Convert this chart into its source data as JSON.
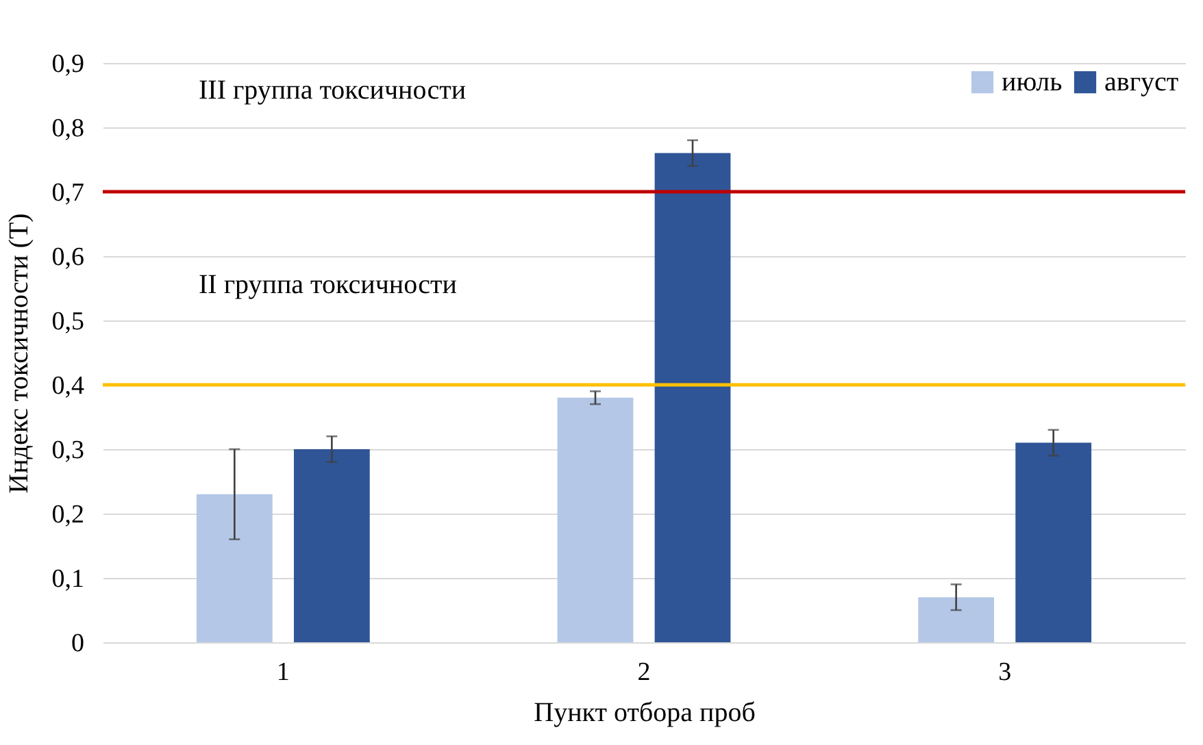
{
  "chart_data": {
    "type": "bar",
    "xlabel": "Пункт отбора проб",
    "ylabel": "Индекс токсичности (Т)",
    "categories": [
      "1",
      "2",
      "3"
    ],
    "series": [
      {
        "name": "июль",
        "color": "#b4c7e7",
        "values": [
          0.23,
          0.38,
          0.07
        ],
        "errors": [
          0.07,
          0.01,
          0.02
        ]
      },
      {
        "name": "август",
        "color": "#2f5597",
        "values": [
          0.3,
          0.76,
          0.31
        ],
        "errors": [
          0.02,
          0.02,
          0.02
        ]
      }
    ],
    "ylim": [
      0,
      0.9
    ],
    "yticks": [
      {
        "value": 0,
        "label": "0"
      },
      {
        "value": 0.1,
        "label": "0,1"
      },
      {
        "value": 0.2,
        "label": "0,2"
      },
      {
        "value": 0.3,
        "label": "0,3"
      },
      {
        "value": 0.4,
        "label": "0,4"
      },
      {
        "value": 0.5,
        "label": "0,5"
      },
      {
        "value": 0.6,
        "label": "0,6"
      },
      {
        "value": 0.7,
        "label": "0,7"
      },
      {
        "value": 0.8,
        "label": "0,8"
      },
      {
        "value": 0.9,
        "label": "0,9"
      }
    ],
    "ref_lines": [
      {
        "axis": "y",
        "value": 0.7,
        "color": "#c00000"
      },
      {
        "axis": "y",
        "value": 0.4,
        "color": "#ffc000"
      }
    ],
    "annotations": [
      "III группа токсичности",
      "II группа токсичности"
    ],
    "grid": "y",
    "legend": "top right"
  }
}
